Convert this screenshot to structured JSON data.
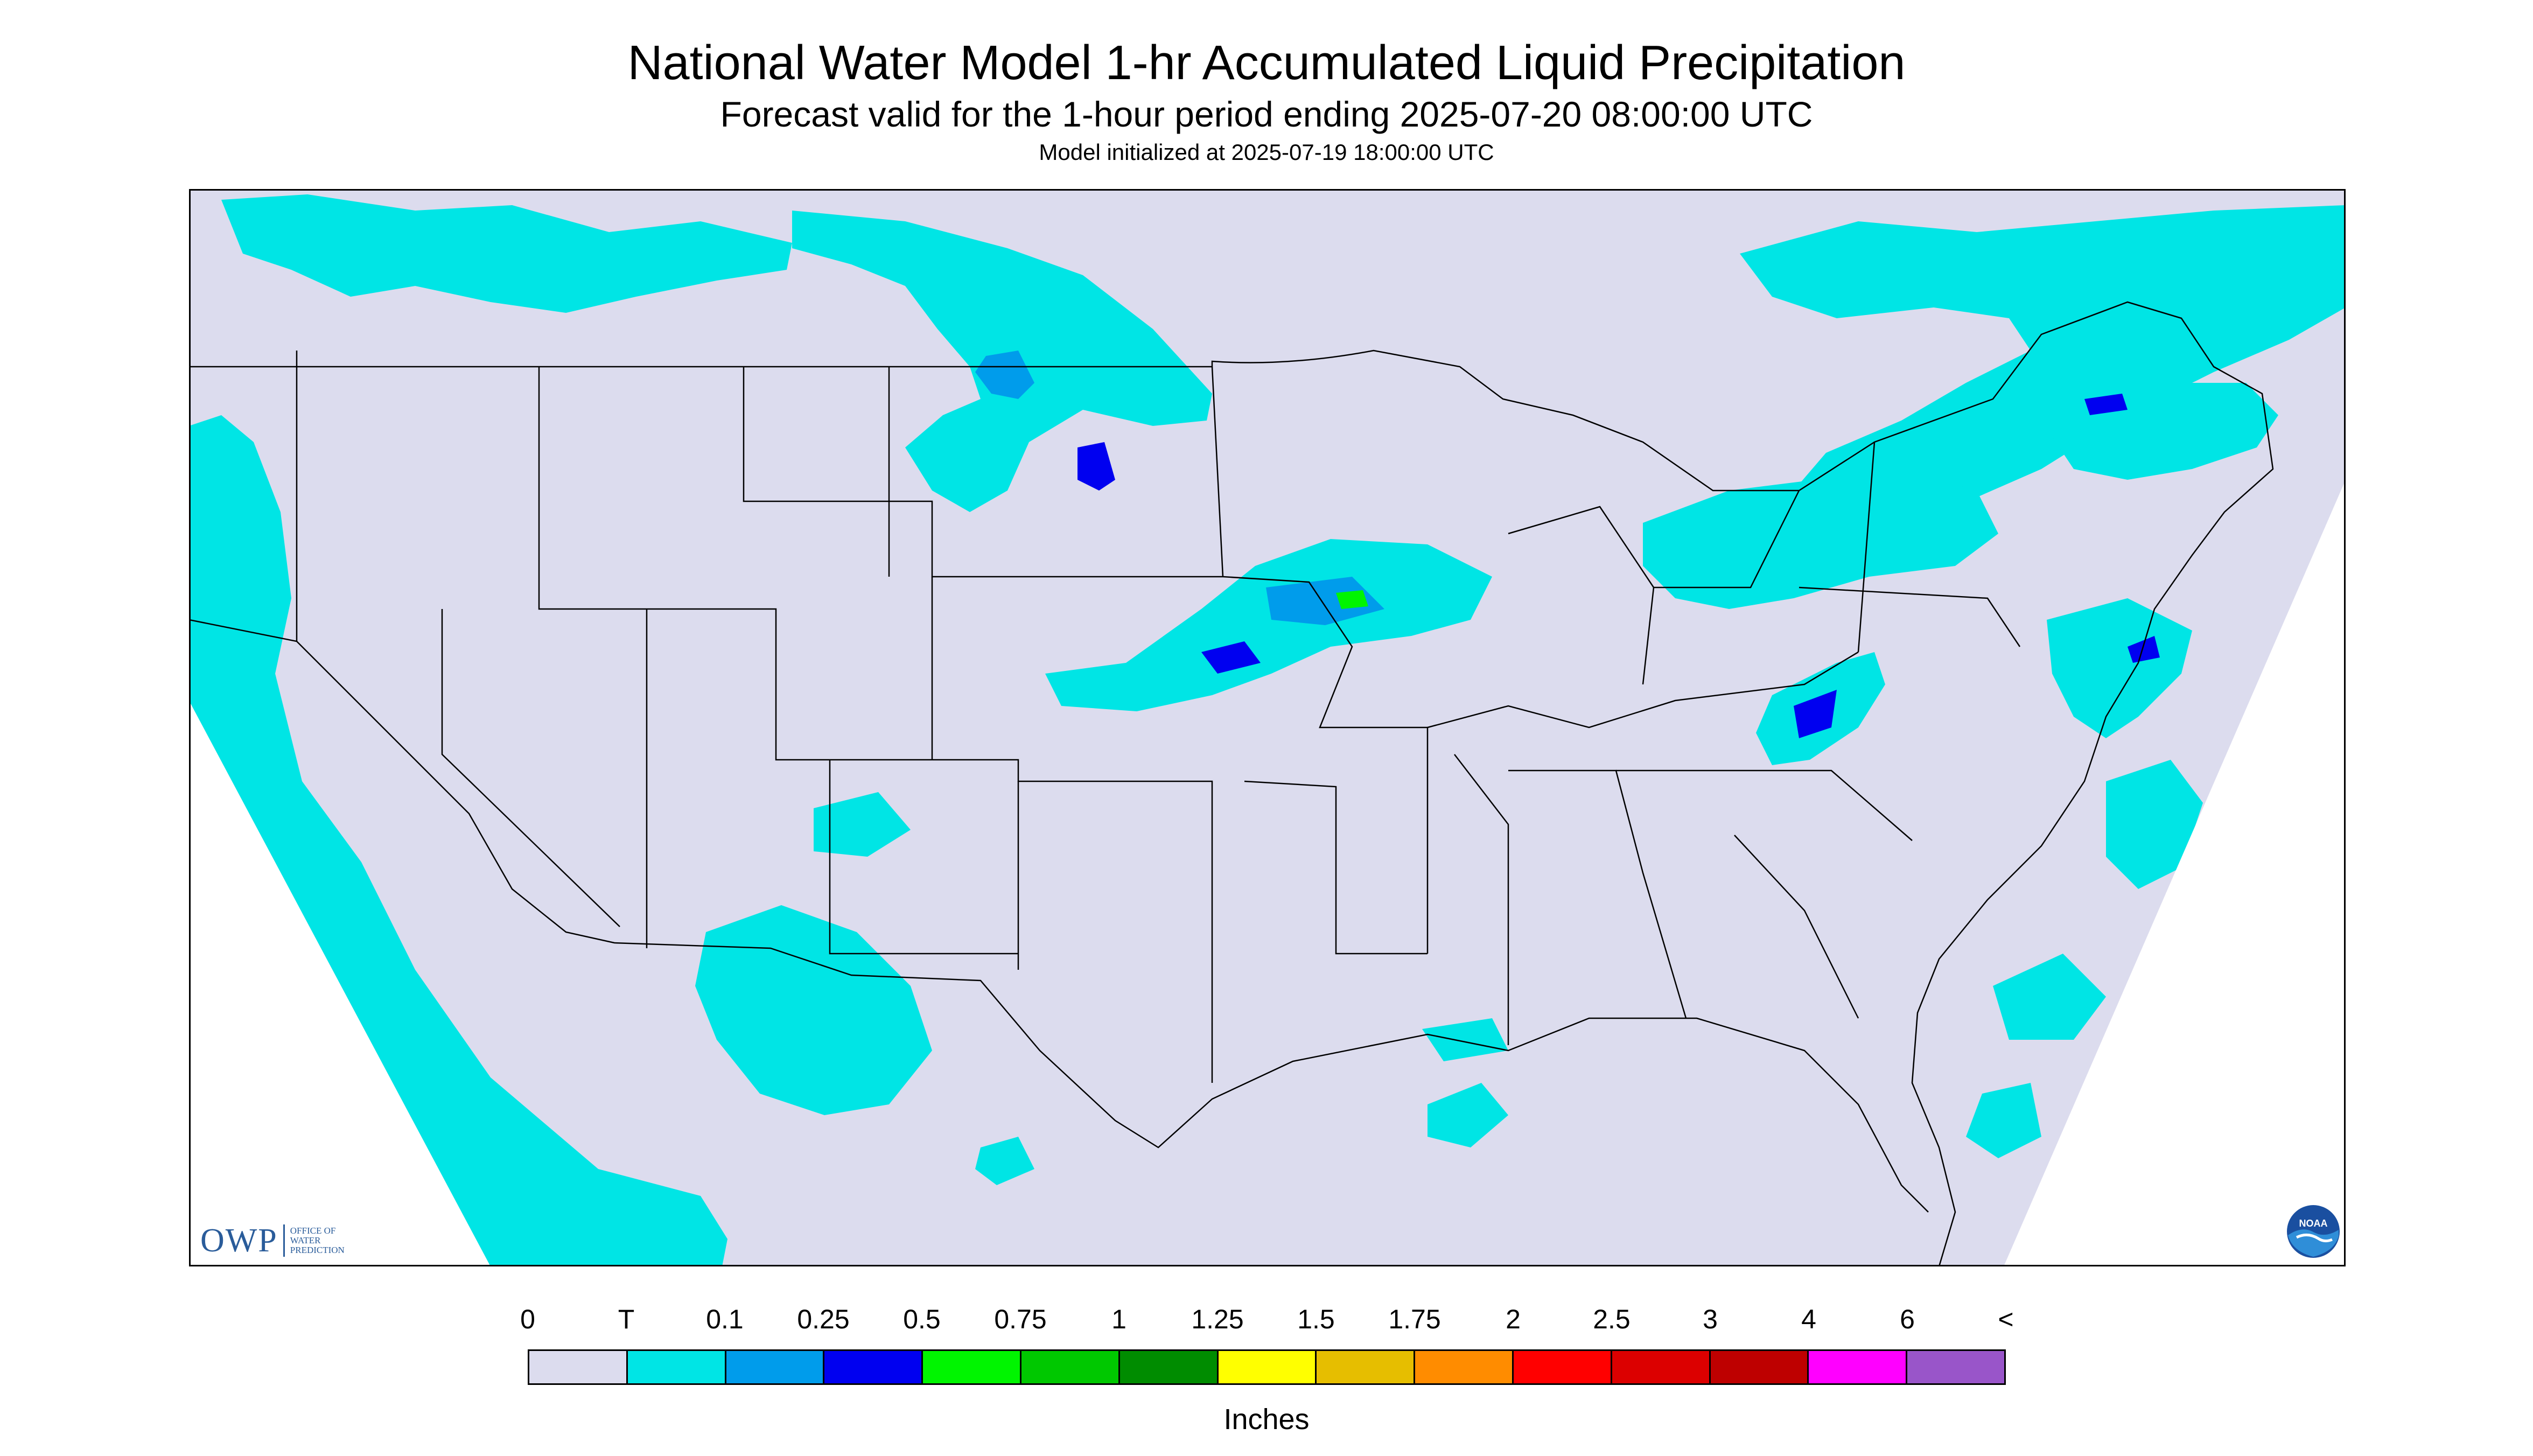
{
  "header": {
    "title": "National Water Model 1-hr Accumulated Liquid Precipitation",
    "subtitle": "Forecast valid for the 1-hour period ending 2025-07-20 08:00:00 UTC",
    "init": "Model initialized at 2025-07-19 18:00:00 UTC"
  },
  "map": {
    "region": "Continental United States",
    "background_color": "#dcdcee",
    "outside_domain_color": "#ffffff",
    "border_color": "#000000"
  },
  "logos": {
    "owp_letters": "OWP",
    "owp_text_line1": "Office of",
    "owp_text_line2": "Water",
    "owp_text_line3": "Prediction",
    "noaa_text": "NOAA"
  },
  "legend": {
    "labels": [
      "0",
      "T",
      "0.1",
      "0.25",
      "0.5",
      "0.75",
      "1",
      "1.25",
      "1.5",
      "1.75",
      "2",
      "2.5",
      "3",
      "4",
      "6",
      "<"
    ],
    "colors": [
      "#dcdcee",
      "#00e5e5",
      "#009ceb",
      "#0000f0",
      "#00f500",
      "#00c800",
      "#008c00",
      "#ffff00",
      "#e6be00",
      "#ff8c00",
      "#ff0000",
      "#dc0000",
      "#be0000",
      "#ff00ff",
      "#9955c9"
    ],
    "units": "Inches"
  }
}
